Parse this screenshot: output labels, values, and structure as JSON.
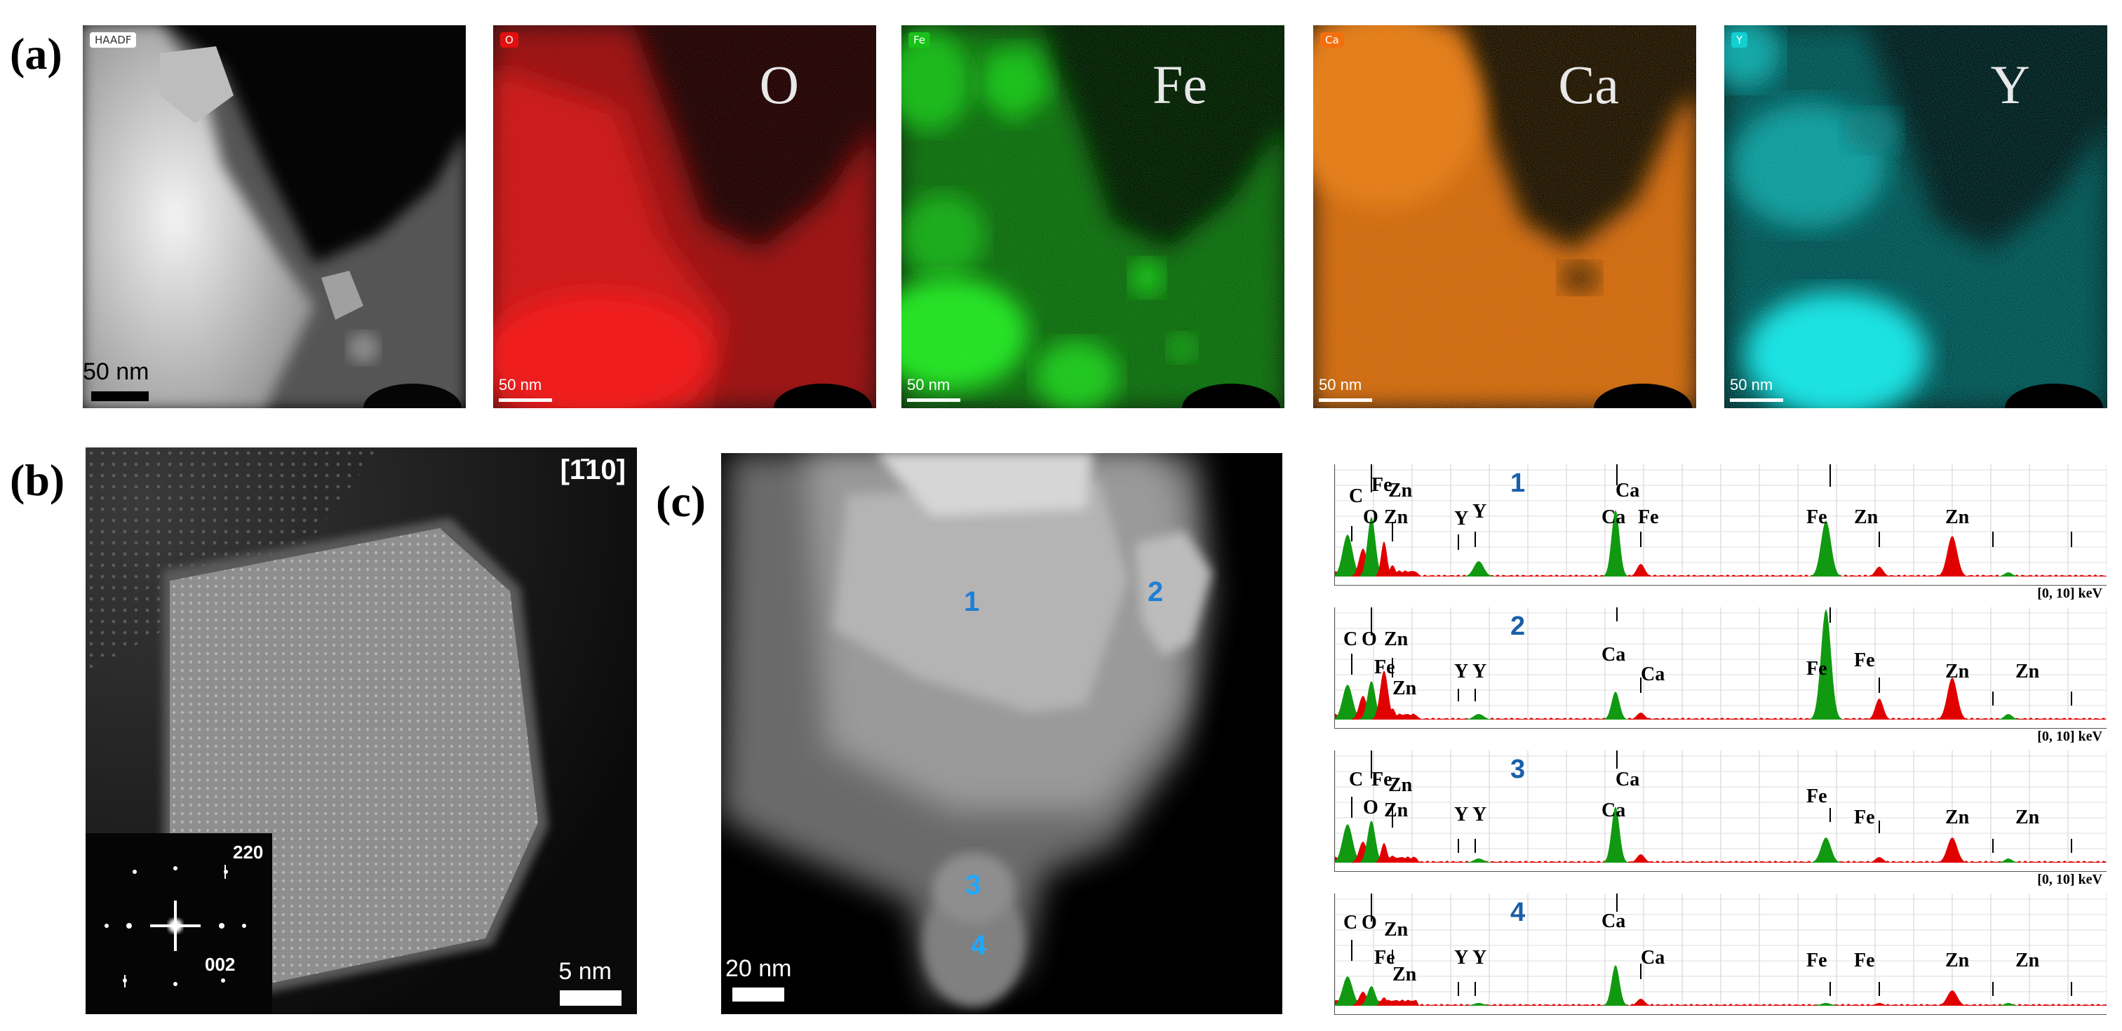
{
  "panel_a": {
    "label": "(a)",
    "maps": [
      {
        "tag": "HAADF",
        "element": "",
        "scalebar": "50 nm",
        "tag_color": "#ffffff",
        "map_color": "#d8d8d8"
      },
      {
        "tag": "O",
        "element": "O",
        "scalebar": "50 nm",
        "tag_color": "#e01010",
        "map_color": "#e01010"
      },
      {
        "tag": "Fe",
        "element": "Fe",
        "scalebar": "50 nm",
        "tag_color": "#18c018",
        "map_color": "#18d018"
      },
      {
        "tag": "Ca",
        "element": "Ca",
        "scalebar": "50 nm",
        "tag_color": "#f07010",
        "map_color": "#f07010"
      },
      {
        "tag": "Y",
        "element": "Y",
        "scalebar": "50 nm",
        "tag_color": "#10e0e0",
        "map_color": "#10e0e0"
      }
    ]
  },
  "panel_b": {
    "label": "(b)",
    "zone_axis": "[1̄10]",
    "scalebar": "5 nm",
    "fft": {
      "spot_220": "220",
      "spot_002": "002"
    }
  },
  "panel_c": {
    "label": "(c)",
    "scalebar": "20 nm",
    "points": [
      "1",
      "2",
      "3",
      "4"
    ]
  },
  "spectra": {
    "range_label": "[0, 10] keV",
    "colors": {
      "fill_primary": "#e00000",
      "fill_secondary": "#119911"
    },
    "plots": [
      {
        "number": "1",
        "labels": [
          "C",
          "Fe",
          "Zn",
          "O",
          "Zn",
          "Y",
          "Y",
          "Ca",
          "Ca",
          "Fe",
          "Fe",
          "Zn",
          "Zn"
        ]
      },
      {
        "number": "2",
        "labels": [
          "C",
          "O",
          "Zn",
          "Fe",
          "Zn",
          "Y",
          "Y",
          "Ca",
          "Ca",
          "Fe",
          "Fe",
          "Zn",
          "Zn"
        ]
      },
      {
        "number": "3",
        "labels": [
          "C",
          "Fe",
          "Zn",
          "O",
          "Zn",
          "Y",
          "Y",
          "Ca",
          "Ca",
          "Fe",
          "Fe",
          "Zn",
          "Zn"
        ]
      },
      {
        "number": "4",
        "labels": [
          "C",
          "O",
          "Zn",
          "Fe",
          "Zn",
          "Y",
          "Y",
          "Ca",
          "Ca",
          "Fe",
          "Fe",
          "Zn",
          "Zn"
        ]
      }
    ]
  }
}
